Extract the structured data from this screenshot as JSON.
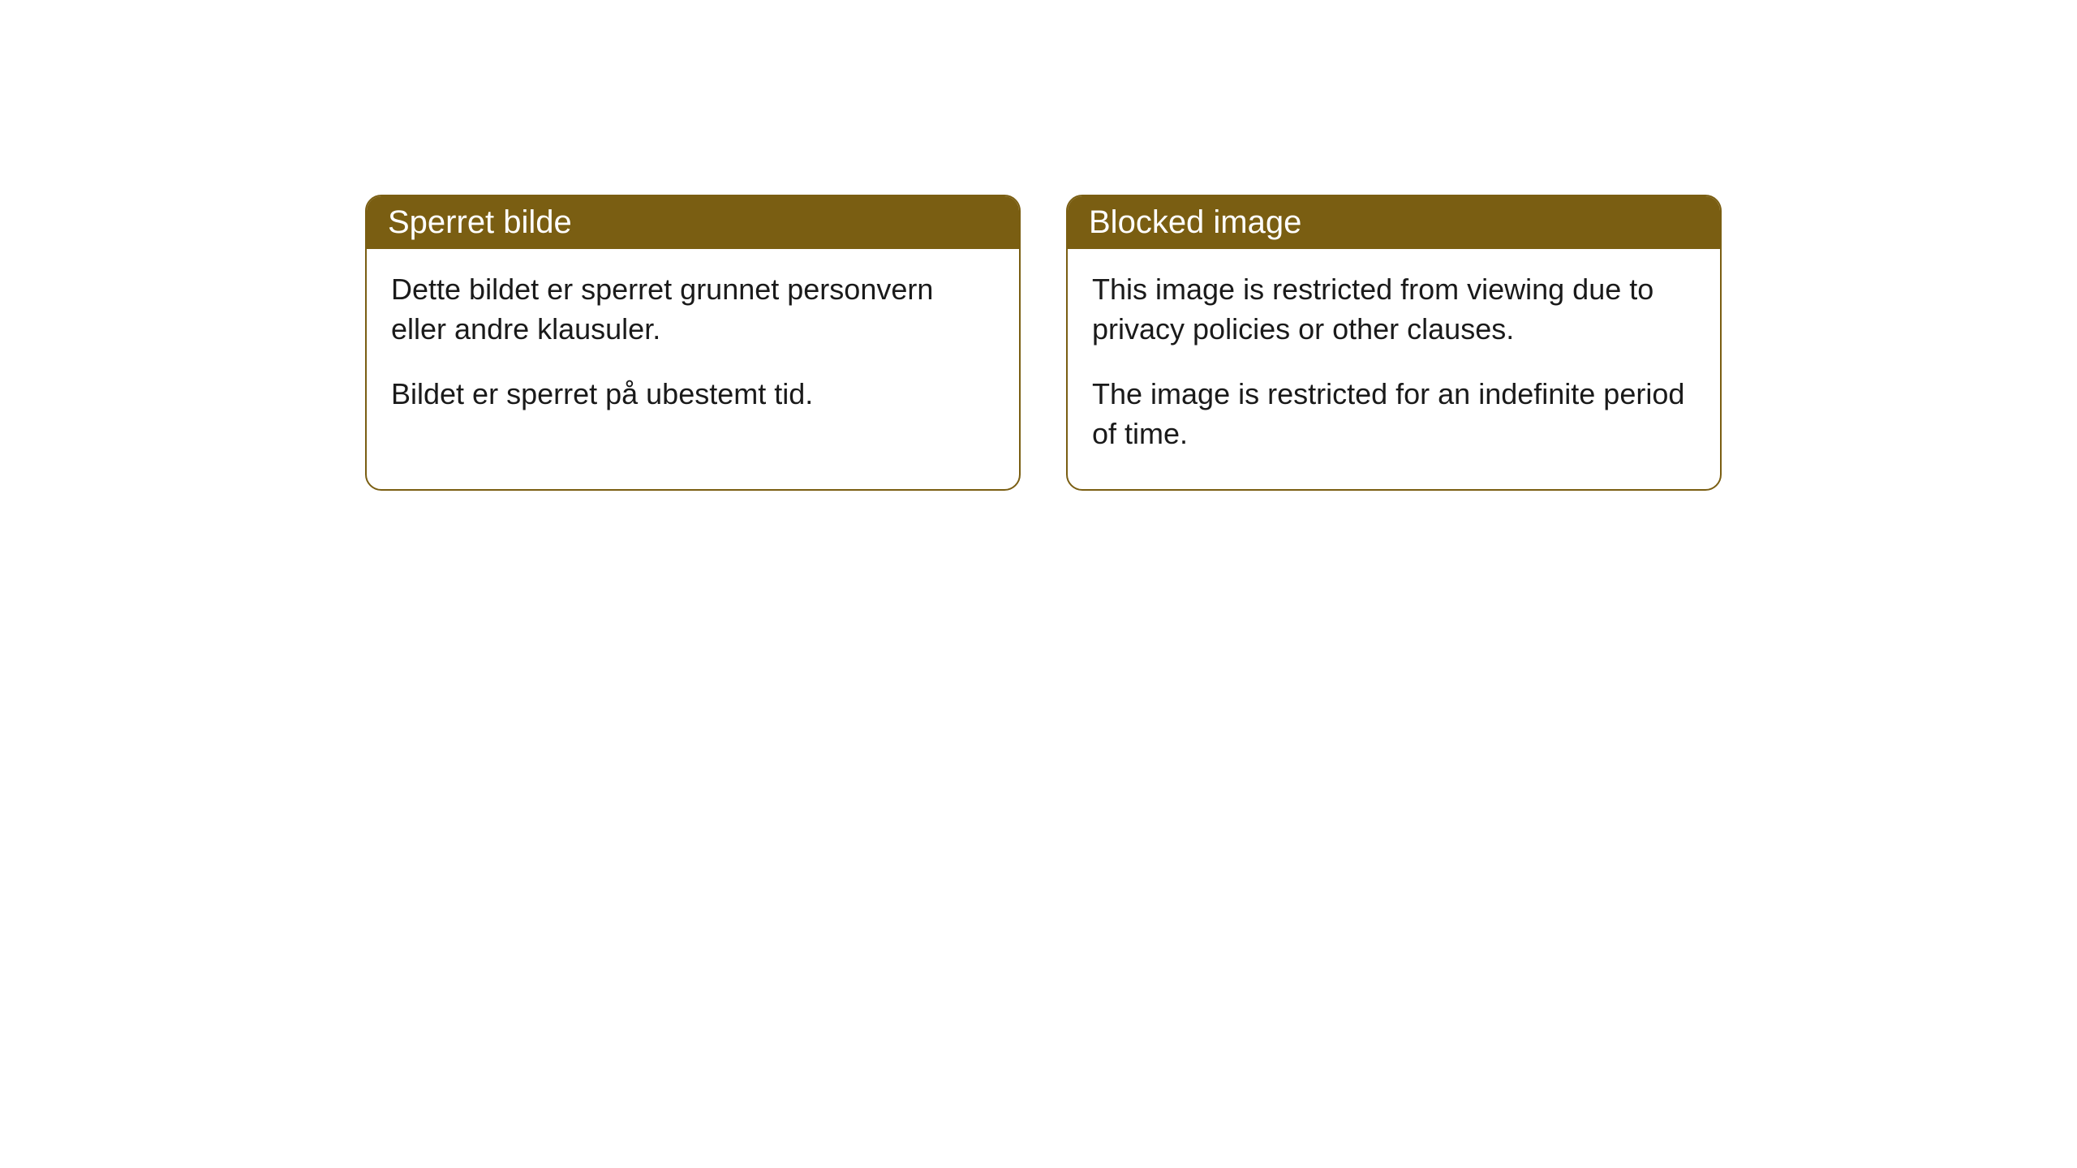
{
  "cards": [
    {
      "title": "Sperret bilde",
      "paragraph1": "Dette bildet er sperret grunnet personvern eller andre klausuler.",
      "paragraph2": "Bildet er sperret på ubestemt tid."
    },
    {
      "title": "Blocked image",
      "paragraph1": "This image is restricted from viewing due to privacy policies or other clauses.",
      "paragraph2": "The image is restricted for an indefinite period of time."
    }
  ],
  "style": {
    "header_bg": "#7a5e12",
    "header_text_color": "#ffffff",
    "border_color": "#7a5e12",
    "body_bg": "#ffffff",
    "body_text_color": "#1a1a1a",
    "border_radius": 20,
    "header_fontsize": 40,
    "body_fontsize": 36
  }
}
